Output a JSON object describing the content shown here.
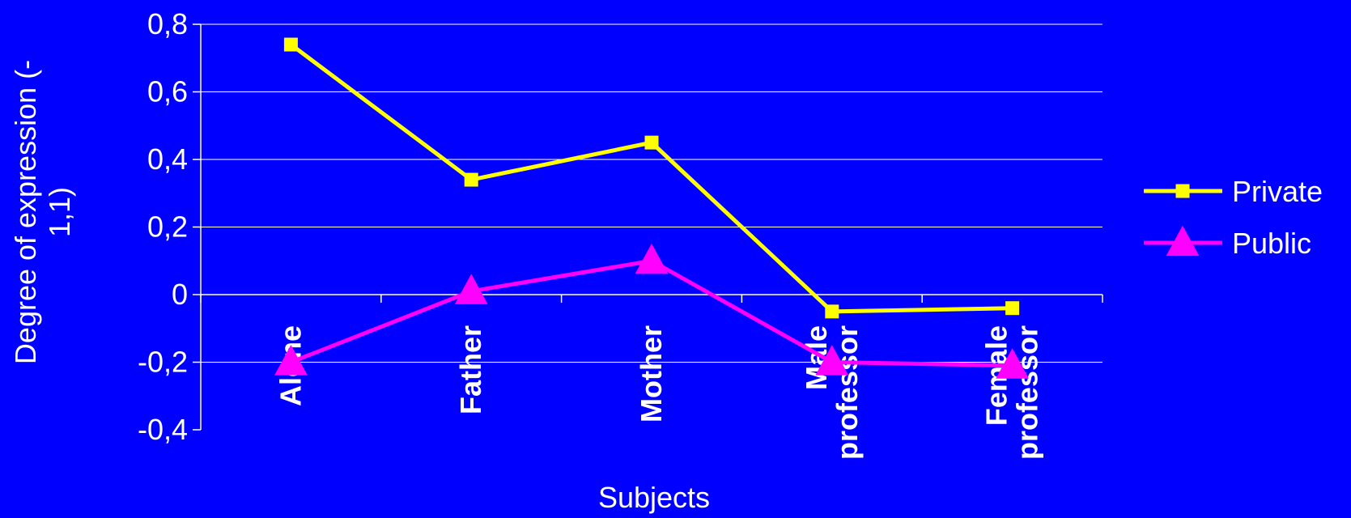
{
  "chart_data": {
    "type": "line",
    "categories": [
      "Alone",
      "Father",
      "Mother",
      "Male professor",
      "Female professor"
    ],
    "category_lines": [
      [
        "Alone"
      ],
      [
        "Father"
      ],
      [
        "Mother"
      ],
      [
        "Male",
        "professor"
      ],
      [
        "Female",
        "professor"
      ]
    ],
    "series": [
      {
        "name": "Private",
        "values": [
          0.74,
          0.34,
          0.45,
          -0.05,
          -0.04
        ],
        "color": "#FFFF00",
        "marker": "square"
      },
      {
        "name": "Public",
        "values": [
          -0.2,
          0.01,
          0.1,
          -0.2,
          -0.21
        ],
        "color": "#FF00FF",
        "marker": "triangle"
      }
    ],
    "xlabel": "Subjects",
    "ylabel_lines": [
      "Degree of expression (-",
      "1,1)"
    ],
    "ylim": [
      -0.4,
      0.8
    ],
    "yticks": [
      -0.4,
      -0.2,
      0,
      0.2,
      0.4,
      0.6,
      0.8
    ],
    "ytick_labels": [
      "-0,4",
      "-0,2",
      "0",
      "0,2",
      "0,4",
      "0,6",
      "0,8"
    ],
    "grid": true,
    "legend_position": "right",
    "colors": {
      "background": "#0000FF",
      "gridline": "#FFFFFF",
      "text": "#FFFFFF"
    }
  }
}
